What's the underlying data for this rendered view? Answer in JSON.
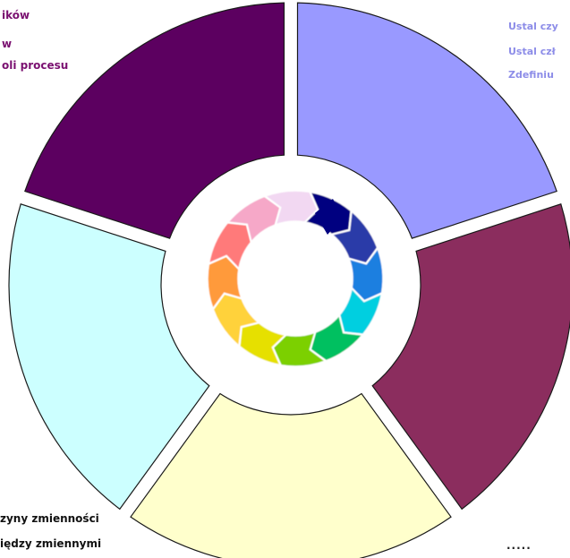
{
  "diagram": {
    "segments": [
      {
        "id": "define",
        "color": "#9999ff"
      },
      {
        "id": "measure",
        "color": "#8b2d5e"
      },
      {
        "id": "analyze",
        "color": "#ffffcc"
      },
      {
        "id": "improve",
        "color": "#ccffff"
      },
      {
        "id": "control",
        "color": "#5c0060"
      }
    ],
    "labels": {
      "top_left": [
        "ików",
        "w",
        "oli procesu"
      ],
      "top_left_color": "#7a1070",
      "top_right": [
        "Ustal czy",
        "Ustal czł",
        "Zdefiniu"
      ],
      "top_right_color": "#8d8de8",
      "bottom_left": [
        "zyny zmienności",
        "iędzy zmiennymi"
      ],
      "bottom_left_color": "#111111",
      "bottom_right": "·····",
      "bottom_right_color": "#222222"
    },
    "center_icon": "cycle-arrows-icon"
  }
}
